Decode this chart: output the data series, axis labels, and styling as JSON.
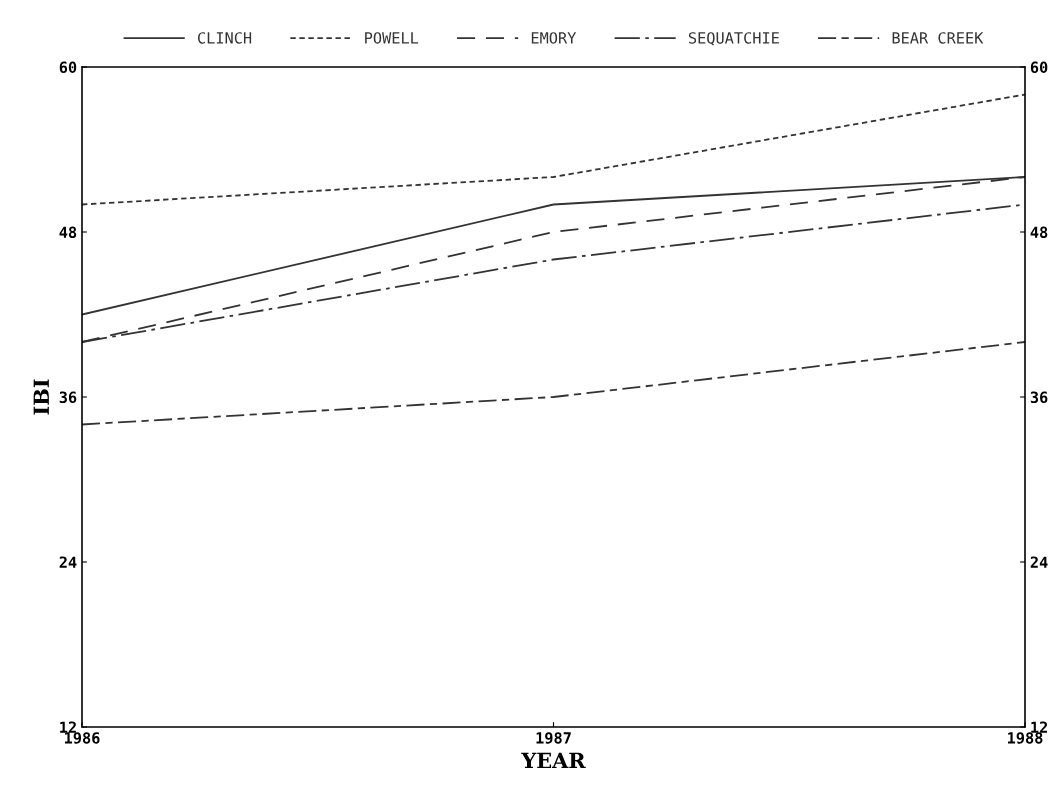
{
  "chart_data": {
    "type": "line",
    "xlabel": "YEAR",
    "ylabel": "IBI",
    "x": [
      1986,
      1987,
      1988
    ],
    "xlim": [
      1986,
      1988
    ],
    "xticks": [
      1986,
      1987,
      1988
    ],
    "ylim": [
      12,
      60
    ],
    "yticks": [
      12,
      24,
      36,
      48,
      60
    ],
    "y2lim": [
      12,
      60
    ],
    "y2ticks": [
      12,
      24,
      36,
      48,
      60
    ],
    "grid": false,
    "legend": "top",
    "marker": "none",
    "series": [
      {
        "name": "CLINCH",
        "color": "#333333",
        "line_style": "solid",
        "values": [
          42,
          50,
          52
        ]
      },
      {
        "name": "POWELL",
        "color": "#333333",
        "line_style": "dotted",
        "values": [
          50,
          52,
          58
        ]
      },
      {
        "name": "EMORY",
        "color": "#333333",
        "line_style": "dashed",
        "values": [
          40,
          48,
          52
        ]
      },
      {
        "name": "SEQUATCHIE",
        "color": "#333333",
        "line_style": "dashdot",
        "values": [
          40,
          46,
          50
        ]
      },
      {
        "name": "BEAR CREEK",
        "color": "#333333",
        "line_style": "longshortdash",
        "values": [
          34,
          36,
          40
        ]
      }
    ]
  }
}
